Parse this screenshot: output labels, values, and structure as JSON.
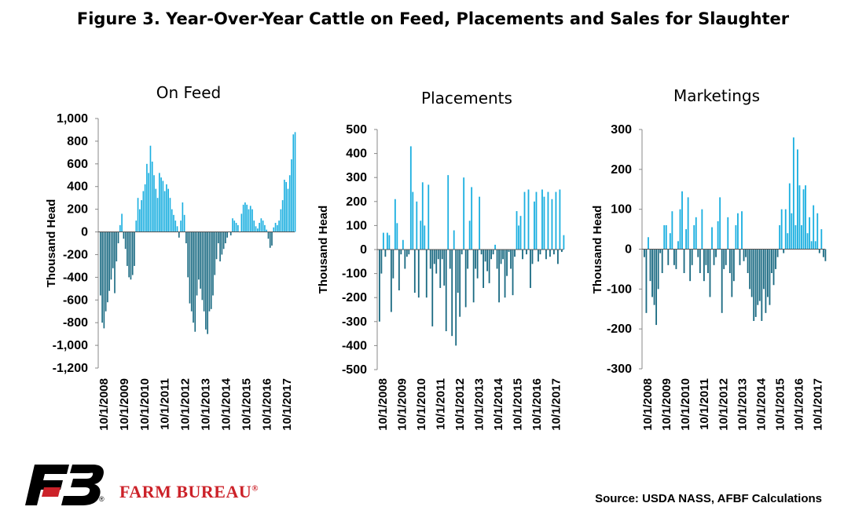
{
  "title": "Figure 3. Year-Over-Year Cattle on Feed, Placements and Sales for Slaughter",
  "source": "Source: USDA NASS, AFBF Calculations",
  "brand": {
    "name": "FARM BUREAU",
    "reg": "®",
    "logo_reg": "®"
  },
  "colors": {
    "positive": "#1bafe0",
    "negative": "#1a6a82",
    "brand_red": "#cc2229"
  },
  "date_labels": [
    "10/1/2008",
    "10/1/2009",
    "10/1/2010",
    "10/1/2011",
    "10/1/2012",
    "10/1/2013",
    "10/1/2014",
    "10/1/2015",
    "10/1/2016",
    "10/1/2017"
  ],
  "chart_data": [
    {
      "type": "bar",
      "title": "On Feed",
      "ylabel": "Thousand Head",
      "ylim": [
        -1200,
        1000
      ],
      "yticks": [
        -1200,
        -1000,
        -800,
        -600,
        -400,
        -200,
        0,
        200,
        400,
        600,
        800,
        1000
      ],
      "ytick_labels": [
        "-1,200",
        "-1,000",
        "-800",
        "-600",
        "-400",
        "-200",
        "0",
        "200",
        "400",
        "600",
        "800",
        "1,000"
      ],
      "x_start": "10/1/2008",
      "frequency": "monthly",
      "values": [
        -560,
        -800,
        -850,
        -700,
        -620,
        -520,
        -420,
        -320,
        -540,
        -260,
        -100,
        60,
        160,
        -60,
        -150,
        -300,
        -400,
        -420,
        -380,
        -300,
        100,
        300,
        200,
        280,
        360,
        420,
        600,
        520,
        760,
        620,
        500,
        380,
        300,
        520,
        480,
        450,
        360,
        420,
        380,
        300,
        200,
        150,
        100,
        50,
        -50,
        100,
        260,
        150,
        -100,
        -400,
        -630,
        -700,
        -800,
        -880,
        -560,
        -420,
        -500,
        -600,
        -700,
        -860,
        -900,
        -700,
        -680,
        -560,
        -380,
        -240,
        -100,
        -260,
        -200,
        -150,
        -100,
        -50,
        0,
        -30,
        120,
        100,
        80,
        60,
        0,
        160,
        240,
        260,
        240,
        200,
        230,
        200,
        100,
        50,
        30,
        80,
        120,
        100,
        60,
        20,
        -60,
        -140,
        -120,
        40,
        80,
        60,
        100,
        200,
        280,
        460,
        440,
        380,
        500,
        640,
        860,
        880
      ]
    },
    {
      "type": "bar",
      "title": "Placements",
      "ylabel": "Thousand Head",
      "ylim": [
        -500,
        500
      ],
      "yticks": [
        -500,
        -400,
        -300,
        -200,
        -100,
        0,
        100,
        200,
        300,
        400,
        500
      ],
      "ytick_labels": [
        "-500",
        "-400",
        "-300",
        "-200",
        "-100",
        "0",
        "100",
        "200",
        "300",
        "400",
        "500"
      ],
      "x_start": "10/1/2008",
      "frequency": "monthly",
      "values": [
        -300,
        -100,
        70,
        -30,
        70,
        60,
        -260,
        -120,
        210,
        110,
        -170,
        -20,
        40,
        -80,
        -30,
        -20,
        430,
        240,
        -180,
        200,
        -200,
        120,
        280,
        100,
        -200,
        270,
        -80,
        -320,
        -60,
        -100,
        -40,
        -160,
        -40,
        -150,
        -340,
        310,
        -80,
        -360,
        80,
        -400,
        -180,
        -280,
        -20,
        300,
        -240,
        -80,
        120,
        260,
        -220,
        -80,
        -120,
        220,
        -20,
        -160,
        -50,
        -90,
        -140,
        -40,
        -20,
        20,
        -80,
        -220,
        -60,
        -40,
        -200,
        -110,
        -10,
        -80,
        -190,
        -30,
        160,
        100,
        140,
        -40,
        240,
        -20,
        250,
        -160,
        -60,
        200,
        240,
        -50,
        -20,
        250,
        220,
        -40,
        240,
        -30,
        210,
        -20,
        240,
        -60,
        250,
        -10,
        60
      ]
    },
    {
      "type": "bar",
      "title": "Marketings",
      "ylabel": "Thousand Head",
      "ylim": [
        -300,
        300
      ],
      "yticks": [
        -300,
        -200,
        -100,
        0,
        100,
        200,
        300
      ],
      "ytick_labels": [
        "-300",
        "-200",
        "-100",
        "0",
        "100",
        "200",
        "300"
      ],
      "x_start": "10/1/2008",
      "frequency": "monthly",
      "values": [
        -20,
        -160,
        30,
        -80,
        -120,
        -140,
        -190,
        -100,
        -10,
        -60,
        60,
        60,
        -40,
        40,
        95,
        -40,
        -50,
        20,
        100,
        145,
        -60,
        50,
        130,
        -80,
        -40,
        60,
        80,
        -20,
        -60,
        100,
        -80,
        -40,
        -60,
        -120,
        55,
        -40,
        -20,
        70,
        130,
        -160,
        -50,
        -40,
        80,
        -60,
        -120,
        -80,
        60,
        90,
        -40,
        95,
        -30,
        -20,
        -60,
        -100,
        -120,
        -180,
        -170,
        -140,
        -130,
        -180,
        -100,
        -160,
        -120,
        -140,
        -60,
        -90,
        -50,
        -20,
        60,
        100,
        -10,
        100,
        40,
        165,
        90,
        280,
        60,
        250,
        160,
        60,
        150,
        160,
        40,
        80,
        20,
        110,
        20,
        90,
        -10,
        50,
        -20,
        -30
      ]
    }
  ]
}
